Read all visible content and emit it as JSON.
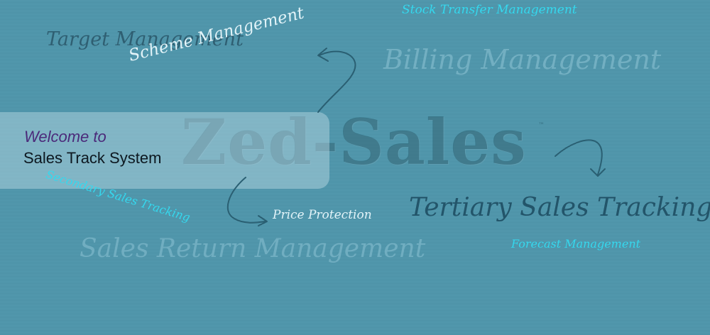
{
  "brand": {
    "logo_text": "Zed-Sales",
    "trademark": "™"
  },
  "welcome": {
    "line1": "Welcome to",
    "line2": "Sales Track System"
  },
  "features": {
    "stock_transfer": "Stock Transfer Management",
    "target": "Target Management",
    "scheme": "Scheme Management",
    "billing": "Billing Management",
    "secondary": "Secondary Sales Tracking",
    "price_protection": "Price Protection",
    "tertiary": "Tertiary Sales Tracking",
    "sales_return": "Sales Return Management",
    "forecast": "Forecast Management"
  },
  "colors": {
    "background": "#4d96ac",
    "cyan_label": "#35d8ee",
    "dark_label": "#23556a",
    "light_label": "#e2f3f8",
    "faded_label": "#7fb8ca",
    "welcome_heading": "#4b2a7a"
  }
}
